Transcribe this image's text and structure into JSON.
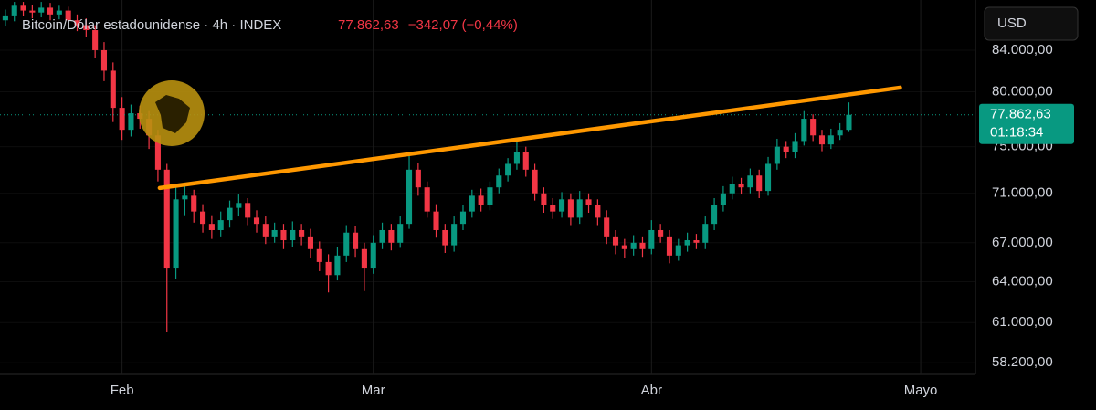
{
  "header": {
    "title": "Bitcoin/Dólar estadounidense · 4h · INDEX",
    "change": "−342,07 (−0,44%)",
    "currency": "USD"
  },
  "chart_data": {
    "type": "candlestick",
    "last_price": {
      "value": 77862.63,
      "label": "77.862,63"
    },
    "countdown": "01:18:34",
    "x": [
      -13,
      -12,
      -11,
      -10,
      -9,
      -8,
      -7,
      -6,
      -5,
      -4,
      -3,
      -2,
      -1,
      0,
      1,
      2,
      3,
      4,
      5,
      6,
      7,
      8,
      9,
      10,
      11,
      12,
      13,
      14,
      15,
      16,
      17,
      18,
      19,
      20,
      21,
      22,
      23,
      24,
      25,
      26,
      27,
      28,
      29,
      30,
      31,
      32,
      33,
      34,
      35,
      36,
      37,
      38,
      39,
      40,
      41,
      42,
      43,
      44,
      45,
      46,
      47,
      48,
      49,
      50,
      51,
      52,
      53,
      54,
      55,
      56,
      57,
      58,
      59,
      60,
      61,
      62,
      63,
      64,
      65,
      66,
      67,
      68,
      69,
      70,
      71,
      72,
      73,
      74,
      75,
      76,
      77,
      78,
      79,
      80,
      81
    ],
    "open": [
      87000,
      87500,
      88500,
      88000,
      87800,
      88300,
      87600,
      88000,
      87000,
      86500,
      86000,
      84000,
      82000,
      78500,
      76500,
      78000,
      77500,
      76000,
      73000,
      65000,
      70500,
      70800,
      69500,
      68500,
      68000,
      68800,
      69800,
      70200,
      69000,
      68500,
      67500,
      68000,
      67200,
      68000,
      67500,
      66500,
      65500,
      64500,
      66000,
      67800,
      66500,
      65000,
      67000,
      68000,
      67000,
      68500,
      73000,
      71500,
      69500,
      68000,
      66800,
      68500,
      69500,
      70800,
      70000,
      71500,
      72500,
      73500,
      74500,
      73000,
      71000,
      70000,
      69500,
      70500,
      69000,
      70500,
      70000,
      69000,
      67500,
      66800,
      66500,
      67000,
      66500,
      68000,
      67500,
      66000,
      66800,
      67200,
      67000,
      68500,
      70000,
      71000,
      71800,
      71500,
      72500,
      71200,
      73500,
      75000,
      74500,
      75500,
      77500,
      76000,
      75200,
      76000,
      76500
    ],
    "high": [
      88100,
      88900,
      88900,
      88600,
      88900,
      88800,
      88500,
      88400,
      87600,
      87200,
      86500,
      84800,
      82800,
      79500,
      78800,
      78700,
      78200,
      76500,
      73500,
      71800,
      71900,
      71300,
      70100,
      69200,
      69500,
      70400,
      70900,
      70600,
      69600,
      69100,
      68600,
      68500,
      68700,
      68500,
      68100,
      67100,
      66100,
      66700,
      68400,
      68300,
      67000,
      67600,
      68600,
      68500,
      69100,
      74200,
      73600,
      72000,
      70100,
      68500,
      69100,
      70000,
      71300,
      71400,
      72000,
      73100,
      74000,
      75600,
      75000,
      73500,
      71500,
      70600,
      71100,
      71000,
      71200,
      71000,
      70500,
      69600,
      68000,
      67300,
      67600,
      67500,
      68800,
      68500,
      68000,
      67300,
      67800,
      67700,
      69100,
      70600,
      71600,
      72400,
      72300,
      73100,
      73000,
      74100,
      75700,
      75500,
      76200,
      78200,
      77900,
      76500,
      76600,
      77100,
      79000
    ],
    "low": [
      86400,
      86900,
      87400,
      87200,
      87300,
      87000,
      87100,
      86300,
      85900,
      85300,
      83200,
      81000,
      77200,
      75600,
      75900,
      76600,
      74800,
      72000,
      60300,
      64200,
      69200,
      68600,
      67800,
      67300,
      67500,
      68200,
      69100,
      68400,
      67800,
      66900,
      67000,
      66500,
      66700,
      66800,
      65800,
      64800,
      63200,
      64100,
      65500,
      65900,
      63300,
      64600,
      66500,
      66400,
      66600,
      68100,
      70800,
      69000,
      67400,
      66200,
      66300,
      68000,
      69000,
      69500,
      69600,
      71000,
      72000,
      73000,
      72400,
      70400,
      69400,
      68900,
      69000,
      68400,
      68500,
      69400,
      68400,
      66900,
      66100,
      65800,
      66000,
      65900,
      66100,
      67000,
      65400,
      65600,
      66300,
      66500,
      66500,
      68000,
      69500,
      70500,
      70900,
      71000,
      70600,
      70800,
      73000,
      74000,
      74000,
      75100,
      75500,
      74600,
      74800,
      75600,
      76300
    ],
    "close": [
      87500,
      88500,
      88000,
      87800,
      88300,
      87600,
      88000,
      87000,
      86500,
      86000,
      84000,
      82000,
      78500,
      76500,
      78000,
      77500,
      76000,
      73000,
      65000,
      70500,
      70800,
      69500,
      68500,
      68000,
      68800,
      69800,
      70200,
      69000,
      68500,
      67500,
      68000,
      67200,
      68000,
      67500,
      66500,
      65500,
      64500,
      66000,
      67800,
      66500,
      65000,
      67000,
      68000,
      67000,
      68500,
      73000,
      71500,
      69500,
      68000,
      66800,
      68500,
      69500,
      70800,
      70000,
      71500,
      72500,
      73500,
      74500,
      73000,
      71000,
      70000,
      69500,
      70500,
      69000,
      70500,
      70000,
      69000,
      67500,
      66800,
      66500,
      67000,
      66500,
      68000,
      67500,
      66000,
      66800,
      67200,
      67000,
      68500,
      70000,
      71000,
      71800,
      71500,
      72500,
      71200,
      73500,
      75000,
      74500,
      75500,
      77500,
      76000,
      75200,
      76000,
      76500,
      77863
    ],
    "up_color": "#089981",
    "down_color": "#f23645",
    "trendline": {
      "x": [
        4.2,
        86.7
      ],
      "y": [
        71450,
        80390
      ],
      "color": "#ff9800"
    },
    "xlim": [
      -13.6,
      95.1
    ],
    "xticks": [
      {
        "value": 0,
        "label": "Feb"
      },
      {
        "value": 28,
        "label": "Mar"
      },
      {
        "value": 59,
        "label": "Abr"
      },
      {
        "value": 89,
        "label": "Mayo"
      }
    ],
    "ylim": [
      57400,
      89100
    ],
    "log_scale": true,
    "yticks": [
      {
        "value": 84000,
        "label": "84.000,00"
      },
      {
        "value": 80000,
        "label": "80.000,00"
      },
      {
        "value": 75000,
        "label": "75.000,00"
      },
      {
        "value": 71000,
        "label": "71.000,00"
      },
      {
        "value": 67000,
        "label": "67.000,00"
      },
      {
        "value": 64000,
        "label": "64.000,00"
      },
      {
        "value": 61000,
        "label": "61.000,00"
      },
      {
        "value": 58200,
        "label": "58.200,00"
      }
    ],
    "grid": true
  }
}
